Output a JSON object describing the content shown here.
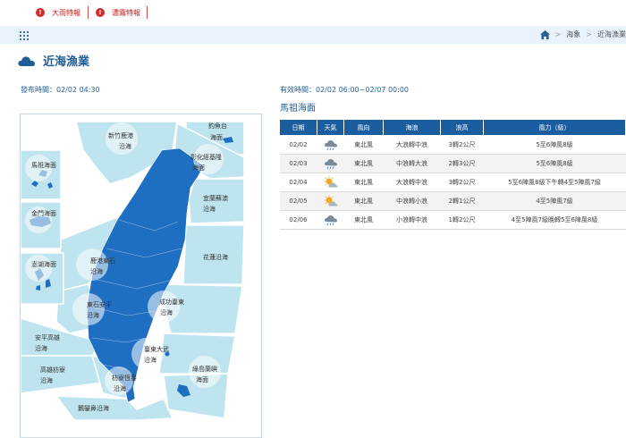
{
  "alerts": [
    {
      "label": "大雨特報",
      "icon": "exclamation-icon"
    },
    {
      "label": "濃霧特報",
      "icon": "exclamation-icon"
    }
  ],
  "breadcrumb": {
    "items": [
      "海象",
      "近海漁業"
    ]
  },
  "page": {
    "title": "近海漁業",
    "title_icon": "cloud-icon"
  },
  "issue_time": "發布時間：02/02 04:30",
  "valid_time": "有效時間：02/02 06:00~02/07 00:00",
  "area_title": "馬祖海面",
  "map": {
    "labels": {
      "diaoyutai": [
        "釣魚台",
        "海面"
      ],
      "xinzhu": [
        "新竹鹿港",
        "沿海"
      ],
      "zhangjing": [
        "彰化經基隆",
        "海面"
      ],
      "yilan": [
        "宜蘭蘇澳",
        "沿海"
      ],
      "hualien": [
        "花蓮沿海"
      ],
      "lugang": [
        "鹿港東石",
        "沿海"
      ],
      "dongshi": [
        "東石安平",
        "沿海"
      ],
      "chenggong": [
        "成功臺東",
        "沿海"
      ],
      "taidong": [
        "臺東大武",
        "沿海"
      ],
      "anping": [
        "安平高雄",
        "沿海"
      ],
      "gaoxiong": [
        "高雄枋寮",
        "沿海"
      ],
      "fangliao": [
        "枋寮恆春",
        "沿海"
      ],
      "lvdao": [
        "綠島蘭嶼",
        "海面"
      ],
      "eluanbi": [
        "鵝鑾鼻沿海"
      ],
      "matsu": [
        "馬祖海面"
      ],
      "kinmen": [
        "金門海面"
      ],
      "penghu": [
        "澎湖海面"
      ]
    }
  },
  "table": {
    "headers": [
      "日期",
      "天氣",
      "風向",
      "海浪",
      "浪高",
      "風力（級）"
    ],
    "rows": [
      {
        "date": "02/02",
        "weather": "rain-cloud-icon",
        "wind_dir": "東北風",
        "wave": "大浪轉中浪",
        "height": "3轉2公尺",
        "force": "5至6陣風8級"
      },
      {
        "date": "02/03",
        "weather": "rain-cloud-icon",
        "wind_dir": "東北風",
        "wave": "中浪轉大浪",
        "height": "2轉3公尺",
        "force": "5至6陣風8級"
      },
      {
        "date": "02/04",
        "weather": "sun-cloud-icon",
        "wind_dir": "東北風",
        "wave": "大浪轉中浪",
        "height": "3轉2公尺",
        "force": "5至6陣風8級下午轉4至5陣風7級"
      },
      {
        "date": "02/05",
        "weather": "sun-cloud-icon",
        "wind_dir": "東北風",
        "wave": "中浪轉小浪",
        "height": "2轉1公尺",
        "force": "4至5陣風7級"
      },
      {
        "date": "02/06",
        "weather": "rain-cloud-icon",
        "wind_dir": "東北風",
        "wave": "小浪轉中浪",
        "height": "1轉2公尺",
        "force": "4至5陣風7級晚轉5至6陣風8級"
      }
    ]
  },
  "colors": {
    "primary": "#1a5ea0",
    "land": "#1e6fc2",
    "sea": "#bde4ef",
    "alert": "#d42a2a"
  }
}
